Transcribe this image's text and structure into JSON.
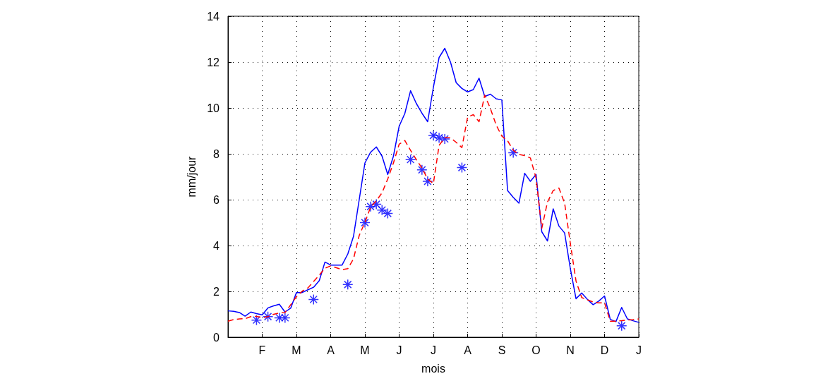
{
  "chart_data": {
    "type": "line",
    "xlabel": "mois",
    "ylabel": "mm/jour",
    "ylim": [
      0,
      14
    ],
    "yticks": [
      0,
      2,
      4,
      6,
      8,
      10,
      12,
      14
    ],
    "grid": true,
    "categories": [
      null,
      null,
      null,
      null,
      null,
      null,
      "F",
      null,
      null,
      null,
      null,
      null,
      "M",
      null,
      null,
      null,
      null,
      null,
      "A",
      null,
      null,
      null,
      null,
      null,
      "M",
      null,
      null,
      null,
      null,
      null,
      "J",
      null,
      null,
      null,
      null,
      null,
      "J",
      null,
      null,
      null,
      null,
      null,
      "A",
      null,
      null,
      null,
      null,
      null,
      "S",
      null,
      null,
      null,
      null,
      null,
      "O",
      null,
      null,
      null,
      null,
      null,
      "N",
      null,
      null,
      null,
      null,
      null,
      "D",
      null,
      null,
      null,
      null,
      null,
      "J"
    ],
    "series": [
      {
        "color": "#0000ff",
        "line_style": "solid",
        "marker": "none",
        "values": [
          1.15,
          1.13,
          1.08,
          0.92,
          1.1,
          1.03,
          0.98,
          1.28,
          1.37,
          1.44,
          1.1,
          1.27,
          1.95,
          1.95,
          2.07,
          2.18,
          2.47,
          3.28,
          3.15,
          3.15,
          3.15,
          3.63,
          4.4,
          6.0,
          7.6,
          8.07,
          8.3,
          7.9,
          7.1,
          7.9,
          9.2,
          9.76,
          10.75,
          10.2,
          9.77,
          9.4,
          10.9,
          12.2,
          12.6,
          12.0,
          11.1,
          10.85,
          10.7,
          10.8,
          11.3,
          10.5,
          10.6,
          10.4,
          10.35,
          6.4,
          6.1,
          5.85,
          7.15,
          6.8,
          7.1,
          4.6,
          4.2,
          5.6,
          4.85,
          4.55,
          3.0,
          1.68,
          1.93,
          1.65,
          1.42,
          1.58,
          1.8,
          0.78,
          0.68,
          1.3,
          0.8,
          0.72,
          0.65
        ]
      },
      {
        "color": "#ff0000",
        "line_style": "dashed",
        "marker": "none",
        "values": [
          0.7,
          0.77,
          0.8,
          0.81,
          0.9,
          0.91,
          0.86,
          0.9,
          1.0,
          1.06,
          1.08,
          1.42,
          1.77,
          2.01,
          2.15,
          2.43,
          2.71,
          3.01,
          3.11,
          3.03,
          2.95,
          2.99,
          3.42,
          4.44,
          5.01,
          5.68,
          5.95,
          6.3,
          6.9,
          7.6,
          8.42,
          8.58,
          8.15,
          7.75,
          7.38,
          6.9,
          6.7,
          8.37,
          8.7,
          8.7,
          8.5,
          8.27,
          9.6,
          9.71,
          9.4,
          10.56,
          9.97,
          9.26,
          8.77,
          8.57,
          8.16,
          7.97,
          7.92,
          7.82,
          6.94,
          4.75,
          5.9,
          6.4,
          6.51,
          5.85,
          4.1,
          2.45,
          1.73,
          1.63,
          1.54,
          1.5,
          1.5,
          0.7,
          0.7,
          0.72,
          0.75,
          0.77,
          0.8
        ]
      },
      {
        "type": "scatter",
        "color": "#0000ff",
        "marker": "cross",
        "values": [
          null,
          null,
          null,
          null,
          null,
          0.75,
          null,
          0.9,
          null,
          0.85,
          0.85,
          null,
          null,
          null,
          null,
          1.65,
          null,
          null,
          null,
          null,
          null,
          2.3,
          null,
          null,
          5.0,
          5.7,
          5.8,
          5.55,
          5.4,
          null,
          null,
          null,
          7.75,
          null,
          7.3,
          6.8,
          8.8,
          8.7,
          8.65,
          null,
          null,
          7.4,
          null,
          null,
          null,
          null,
          null,
          null,
          null,
          null,
          8.05,
          null,
          null,
          null,
          null,
          null,
          null,
          null,
          null,
          null,
          null,
          null,
          null,
          null,
          null,
          null,
          null,
          null,
          null,
          0.5,
          null,
          null,
          null
        ]
      }
    ]
  }
}
